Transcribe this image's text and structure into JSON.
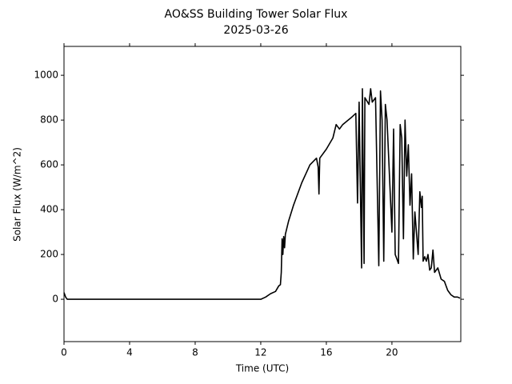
{
  "chart_data": {
    "type": "line",
    "title": "AO&SS Building Tower Solar Flux",
    "subtitle": "2025-03-26",
    "x_label": "Time (UTC)",
    "y_label": "Solar Flux (W/m^2)",
    "x": [
      0,
      0.1,
      0.2,
      12,
      12.3,
      12.6,
      12.9,
      13.1,
      13.2,
      13.25,
      13.3,
      13.35,
      13.4,
      13.45,
      13.5,
      13.7,
      14,
      14.5,
      15,
      15.4,
      15.5,
      15.55,
      15.6,
      16,
      16.4,
      16.6,
      16.8,
      17,
      17.5,
      17.8,
      17.9,
      18,
      18.05,
      18.15,
      18.2,
      18.3,
      18.35,
      18.6,
      18.7,
      18.8,
      19,
      19.2,
      19.3,
      19.4,
      19.5,
      19.6,
      19.7,
      20,
      20.1,
      20.2,
      20.3,
      20.4,
      20.5,
      20.6,
      20.7,
      20.8,
      20.9,
      21,
      21.1,
      21.2,
      21.3,
      21.4,
      21.6,
      21.7,
      21.8,
      21.85,
      21.9,
      22,
      22.1,
      22.2,
      22.3,
      22.4,
      22.5,
      22.6,
      22.8,
      23,
      23.2,
      23.4,
      23.6,
      23.8,
      24,
      24.15
    ],
    "series": [
      {
        "name": "Solar Flux",
        "color": "#000000",
        "values": [
          30,
          10,
          0,
          0,
          10,
          25,
          35,
          60,
          65,
          120,
          270,
          200,
          280,
          230,
          290,
          350,
          420,
          520,
          600,
          630,
          590,
          470,
          630,
          670,
          720,
          780,
          760,
          780,
          810,
          830,
          430,
          880,
          600,
          140,
          940,
          160,
          900,
          870,
          940,
          880,
          900,
          150,
          930,
          800,
          170,
          870,
          800,
          300,
          760,
          200,
          180,
          160,
          780,
          720,
          270,
          800,
          550,
          690,
          420,
          560,
          180,
          390,
          200,
          480,
          410,
          460,
          170,
          190,
          170,
          200,
          130,
          140,
          220,
          120,
          140,
          90,
          80,
          40,
          20,
          10,
          10,
          5
        ]
      }
    ],
    "xlim": [
      0,
      24.2
    ],
    "ylim": [
      -189,
      1129
    ],
    "xticks": [
      0,
      4,
      8,
      12,
      16,
      20
    ],
    "yticks": [
      0,
      200,
      400,
      600,
      800,
      1000
    ]
  }
}
